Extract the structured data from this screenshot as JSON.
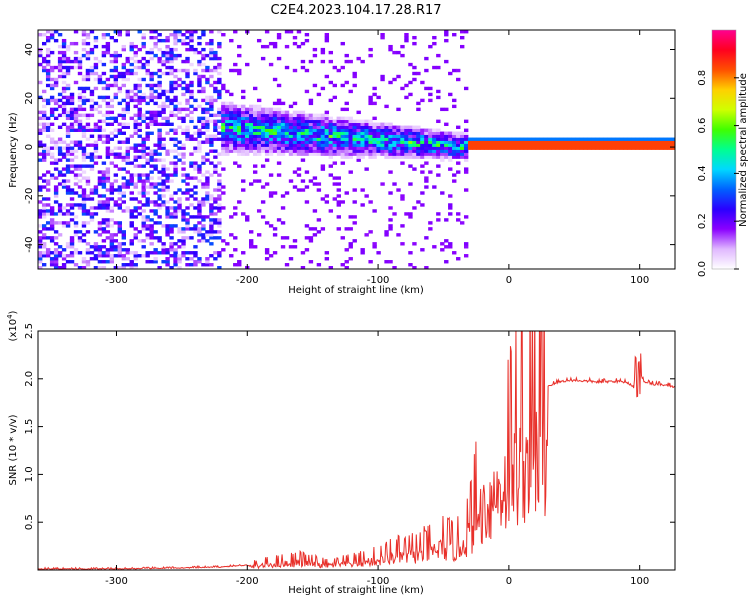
{
  "title": "C2E4.2023.104.17.28.R17",
  "chart_data": [
    {
      "type": "heatmap",
      "xlabel": "Height of straight line (km)",
      "ylabel": "Frequency (Hz)",
      "xlim": [
        -360,
        127
      ],
      "ylim": [
        -50,
        48
      ],
      "xticks": [
        -300,
        -200,
        -100,
        0,
        100
      ],
      "yticks": [
        -40,
        -20,
        0,
        20,
        40
      ],
      "colorbar": {
        "label": "Normalized spectral amplitude",
        "range": [
          0.0,
          1.0
        ],
        "ticks": [
          0.0,
          0.2,
          0.4,
          0.6,
          0.8
        ],
        "colors": [
          "#ffffff",
          "#e0b8ff",
          "#8a00ff",
          "#2a00ff",
          "#0060ff",
          "#00d8ff",
          "#00ff90",
          "#40ff00",
          "#d0ff00",
          "#ffd000",
          "#ff5000",
          "#ff0020",
          "#ff0090"
        ]
      },
      "regions": [
        {
          "x": [
            -360,
            -220
          ],
          "y": [
            -50,
            48
          ],
          "amplitude": 0.1,
          "pattern": "broadband noise"
        },
        {
          "x": [
            -220,
            -30
          ],
          "y": [
            -12,
            20
          ],
          "amplitude": 0.3,
          "pattern": "band drifting from ~8 Hz to ~0 Hz"
        },
        {
          "x": [
            -30,
            127
          ],
          "y": [
            0,
            2
          ],
          "amplitude": 0.85,
          "pattern": "narrow line at ~1 Hz"
        }
      ]
    },
    {
      "type": "line",
      "xlabel": "Height of straight line (km)",
      "ylabel": "SNR (10 * v/v)",
      "y_multiplier": "(x10^4)",
      "y_multiplier_base": "(x10",
      "y_multiplier_exp": "4",
      "y_multiplier_close": ")",
      "xlim": [
        -360,
        127
      ],
      "ylim": [
        0,
        2.5
      ],
      "xticks": [
        -300,
        -200,
        -100,
        0,
        100
      ],
      "yticks": [
        0.5,
        1.0,
        1.5,
        2.0,
        2.5
      ],
      "ytick_labels": [
        "0.5",
        "1.0",
        "1.5",
        "2.0",
        "2.5"
      ],
      "color": "#e8302a",
      "series": [
        {
          "x": [
            -360,
            -300,
            -250,
            -220,
            -200,
            -180,
            -160,
            -140,
            -120,
            -100,
            -90,
            -80,
            -70,
            -60,
            -50,
            -40,
            -30,
            -25,
            -20,
            -15,
            -10,
            -5,
            0,
            5,
            10,
            15,
            20,
            25,
            30,
            40,
            50,
            60,
            70,
            80,
            90,
            95,
            100,
            105,
            110,
            120,
            127
          ],
          "y": [
            0.01,
            0.01,
            0.02,
            0.03,
            0.05,
            0.09,
            0.12,
            0.07,
            0.1,
            0.15,
            0.2,
            0.22,
            0.25,
            0.28,
            0.35,
            0.3,
            0.55,
            0.8,
            0.95,
            1.05,
            1.2,
            1.3,
            1.45,
            1.6,
            1.7,
            1.78,
            1.84,
            1.88,
            1.92,
            1.97,
            1.98,
            1.97,
            1.96,
            1.97,
            1.96,
            1.92,
            2.02,
            1.95,
            1.94,
            1.93,
            1.91
          ]
        }
      ]
    }
  ]
}
